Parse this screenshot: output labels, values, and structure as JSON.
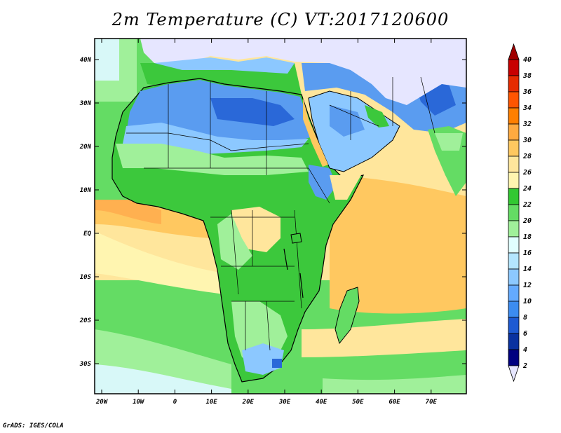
{
  "title": "2m Temperature (C) VT:2017120600",
  "credit": "GrADS: IGES/COLA",
  "map": {
    "lat_labels": [
      "40N",
      "30N",
      "20N",
      "10N",
      "EQ",
      "10S",
      "20S",
      "30S"
    ],
    "lon_labels": [
      "20W",
      "10W",
      "0",
      "10E",
      "20E",
      "30E",
      "40E",
      "50E",
      "60E",
      "70E"
    ]
  },
  "colorbar": {
    "labels": [
      "40",
      "38",
      "36",
      "34",
      "32",
      "30",
      "28",
      "26",
      "24",
      "22",
      "20",
      "18",
      "16",
      "14",
      "12",
      "10",
      "8",
      "6",
      "4",
      "2"
    ],
    "colors": [
      "#a00000",
      "#c80000",
      "#e62b00",
      "#ff5500",
      "#ff7f00",
      "#ffaa40",
      "#ffc860",
      "#ffe69c",
      "#fff5b0",
      "#32c832",
      "#64dc64",
      "#a0f09a",
      "#e0ffff",
      "#b4e6ff",
      "#8cc8ff",
      "#64aaff",
      "#3c8cf0",
      "#1e5ad2",
      "#0a32a0",
      "#000080"
    ],
    "top_color": "#a00000",
    "bottom_color": "#e6e6ff"
  },
  "palette": {
    "ocean_warm": "#ffd98c",
    "ocean_hot": "#ffb050",
    "ocean_mild": "#ffef9c",
    "cool_green": "#60d060",
    "lightgreen": "#a8ec9e",
    "pale": "#d8f8f8",
    "green": "#3cc83c",
    "blue_light": "#8cc8ff",
    "blue_mid": "#5a9cf0",
    "blue_dark": "#2a68d8",
    "lavender": "#e6e6ff",
    "border": "#000000"
  }
}
